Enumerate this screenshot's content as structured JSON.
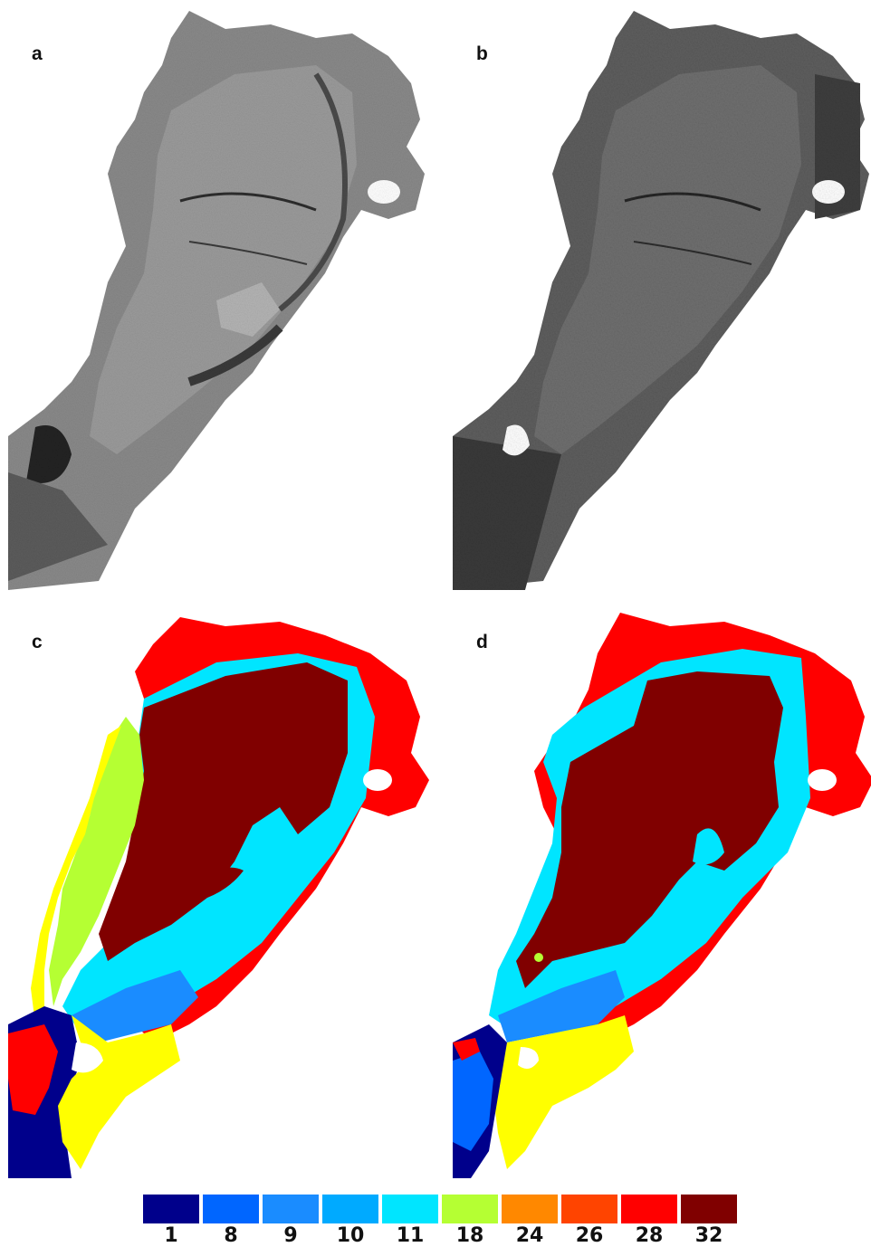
{
  "panels": [
    {
      "id": "a",
      "label": "a",
      "kind": "sar-grayscale"
    },
    {
      "id": "b",
      "label": "b",
      "kind": "sar-grayscale"
    },
    {
      "id": "c",
      "label": "c",
      "kind": "classified-map"
    },
    {
      "id": "d",
      "label": "d",
      "kind": "classified-map"
    }
  ],
  "legend": {
    "classes": [
      {
        "label": "1",
        "color": "#00008b"
      },
      {
        "label": "8",
        "color": "#0066ff"
      },
      {
        "label": "9",
        "color": "#1a8cff"
      },
      {
        "label": "10",
        "color": "#00aaff"
      },
      {
        "label": "11",
        "color": "#00e5ff"
      },
      {
        "label": "18",
        "color": "#b5ff33"
      },
      {
        "label": "24",
        "color": "#ff8800"
      },
      {
        "label": "26",
        "color": "#ff4400"
      },
      {
        "label": "28",
        "color": "#ff0000"
      },
      {
        "label": "32",
        "color": "#800000"
      }
    ]
  },
  "colors": {
    "yellow": "#ffff00",
    "background": "#ffffff"
  }
}
